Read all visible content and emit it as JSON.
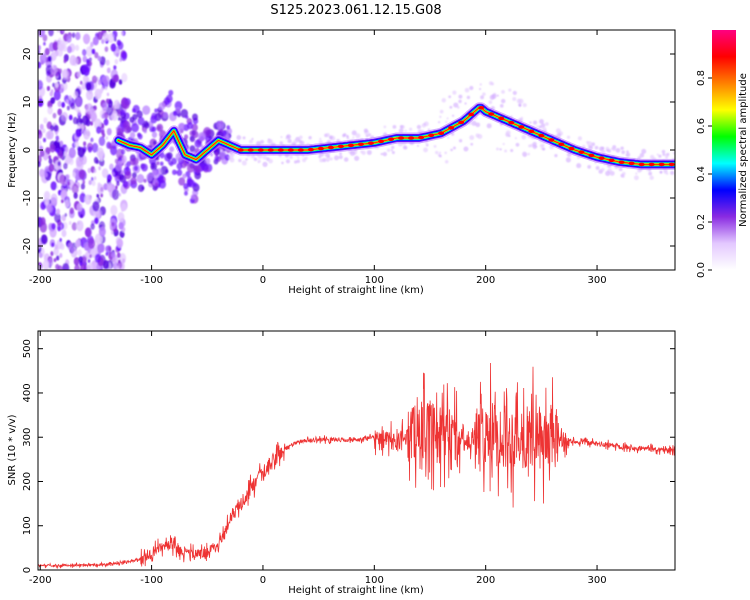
{
  "title": "S125.2023.061.12.15.G08",
  "chart_data": [
    {
      "type": "heatmap",
      "xlabel": "Height of straight line (km)",
      "ylabel": "Frequency (Hz)",
      "xlim": [
        -202,
        370
      ],
      "ylim": [
        -25,
        25
      ],
      "xticks": [
        -200,
        -100,
        0,
        100,
        200,
        300
      ],
      "yticks": [
        -20,
        -10,
        0,
        10,
        20
      ],
      "xtick_labels": [
        "-200",
        "-100",
        "0",
        "100",
        "200",
        "300"
      ],
      "ytick_labels": [
        "-20",
        "-10",
        "0",
        "10",
        "20"
      ],
      "colorbar": {
        "label": "Normalized spectral amplitude",
        "range": [
          0,
          1
        ],
        "ticks": [
          0.0,
          0.2,
          0.4,
          0.6,
          0.8
        ],
        "tick_labels": [
          "0.0",
          "0.2",
          "0.4",
          "0.6",
          "0.8"
        ],
        "colormap": [
          "#ffffff",
          "#e3c8ff",
          "#8a2be2",
          "#0000ff",
          "#00ffff",
          "#00ff00",
          "#ffff00",
          "#ff8000",
          "#ff0000",
          "#ff0080"
        ]
      },
      "ridge": {
        "x": [
          -130,
          -120,
          -110,
          -100,
          -90,
          -80,
          -70,
          -60,
          -50,
          -40,
          -30,
          -20,
          0,
          20,
          40,
          60,
          80,
          100,
          120,
          140,
          160,
          180,
          195,
          200,
          220,
          240,
          260,
          280,
          300,
          320,
          340,
          370
        ],
        "y": [
          2,
          1,
          0.5,
          -1,
          1,
          4,
          -1,
          -2,
          0,
          2,
          1,
          0,
          0,
          0,
          0,
          0.5,
          1,
          1.5,
          2.5,
          2.5,
          3.5,
          6,
          9,
          8,
          6,
          4,
          2,
          0,
          -1.5,
          -2.5,
          -3,
          -3
        ]
      }
    },
    {
      "type": "line",
      "xlabel": "Height of straight line (km)",
      "ylabel": "SNR (10 * v/v)",
      "xlim": [
        -202,
        370
      ],
      "ylim": [
        0,
        540
      ],
      "xticks": [
        -200,
        -100,
        0,
        100,
        200,
        300
      ],
      "yticks": [
        0,
        100,
        200,
        300,
        400,
        500
      ],
      "xtick_labels": [
        "-200",
        "-100",
        "0",
        "100",
        "200",
        "300"
      ],
      "ytick_labels": [
        "0",
        "100",
        "200",
        "300",
        "400",
        "500"
      ],
      "color": "#ee3333",
      "series": [
        {
          "x": [
            -202,
            -180,
            -160,
            -140,
            -120,
            -110,
            -100,
            -90,
            -80,
            -70,
            -60,
            -50,
            -40,
            -30,
            -20,
            -10,
            0,
            10,
            20,
            30,
            40,
            60,
            80,
            100,
            120,
            140,
            160,
            180,
            200,
            220,
            240,
            260,
            280,
            300,
            320,
            340,
            370
          ],
          "y": [
            10,
            10,
            12,
            12,
            20,
            25,
            35,
            55,
            55,
            40,
            35,
            40,
            60,
            110,
            150,
            185,
            215,
            250,
            275,
            288,
            293,
            295,
            293,
            300,
            290,
            320,
            300,
            280,
            310,
            300,
            300,
            295,
            290,
            285,
            280,
            275,
            270
          ]
        }
      ]
    }
  ]
}
